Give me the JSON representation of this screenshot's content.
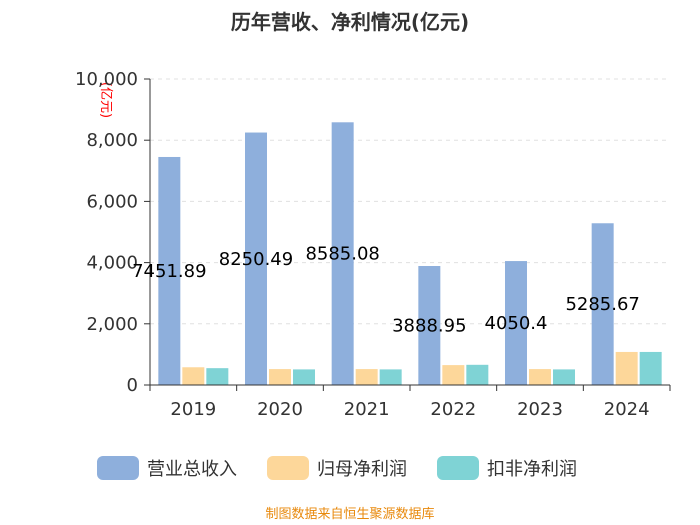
{
  "chart_data": {
    "type": "bar",
    "title": "历年营收、净利情况(亿元)",
    "ylabel": "(亿元)",
    "xlabel": "",
    "ylim": [
      0,
      10000
    ],
    "yticks": [
      "0",
      "2,000",
      "4,000",
      "6,000",
      "8,000",
      "10,000"
    ],
    "yticks_values": [
      0,
      2000,
      4000,
      6000,
      8000,
      10000
    ],
    "categories": [
      "2019",
      "2020",
      "2021",
      "2022",
      "2023",
      "2024"
    ],
    "series": [
      {
        "name": "营业总收入",
        "color": "#8eafdc",
        "values": [
          7451.89,
          8250.49,
          8585.08,
          3888.95,
          4050.4,
          5285.67
        ],
        "labels": [
          "7451.89",
          "8250.49",
          "8585.08",
          "3888.95",
          "4050.4",
          "5285.67"
        ]
      },
      {
        "name": "归母净利润",
        "color": "#fdd79a",
        "values": [
          580,
          520,
          520,
          650,
          520,
          1080
        ]
      },
      {
        "name": "扣非净利润",
        "color": "#7fd3d5",
        "values": [
          550,
          510,
          510,
          660,
          510,
          1080
        ]
      }
    ],
    "legend_position": "bottom",
    "source": "制图数据来自恒生聚源数据库"
  }
}
